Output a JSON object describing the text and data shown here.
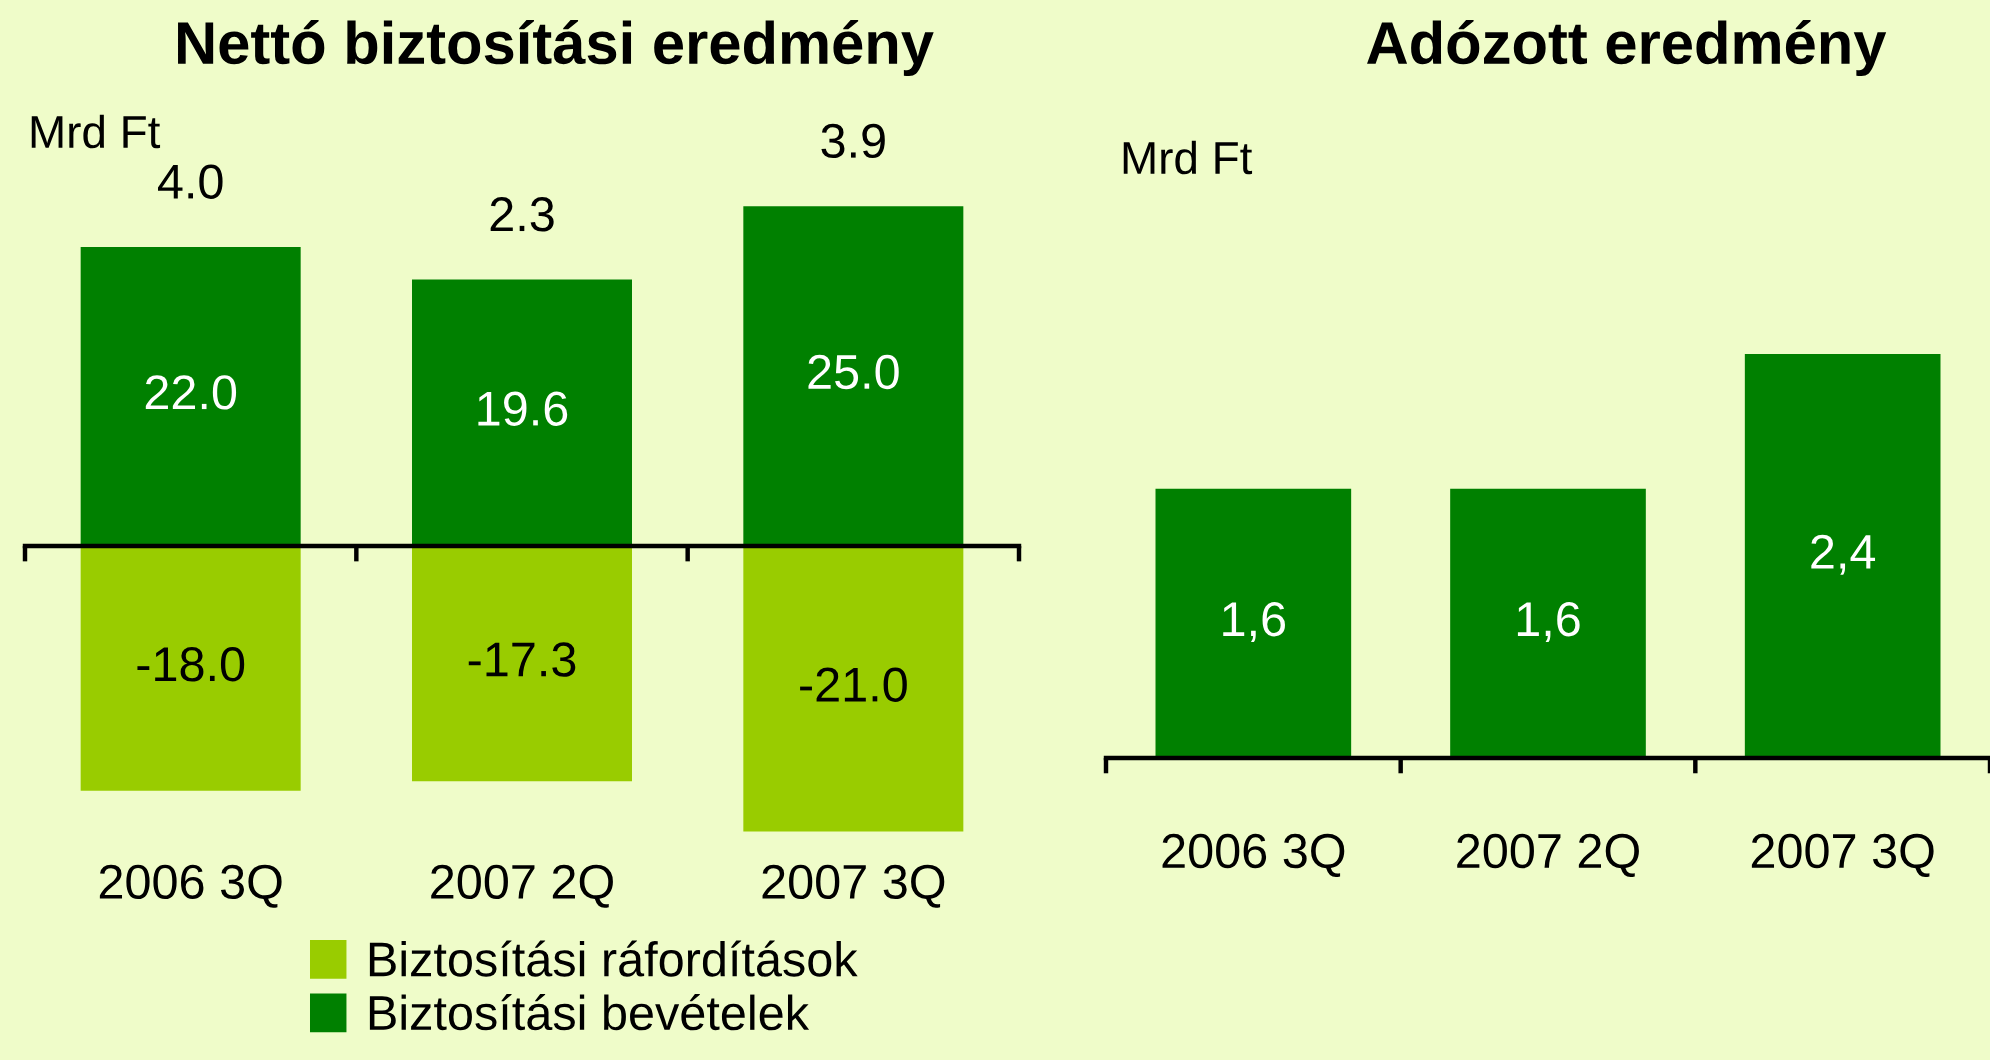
{
  "chart_data": [
    {
      "type": "bar",
      "title": "Nettó biztosítási eredmény",
      "ylabel": "Mrd Ft",
      "categories": [
        "2006 3Q",
        "2007 2Q",
        "2007 3Q"
      ],
      "stacked": true,
      "series": [
        {
          "name": "Biztosítási ráfordítások",
          "color": "#99cc00",
          "values": [
            -18.0,
            -17.3,
            -21.0
          ],
          "value_labels": [
            "-18.0",
            "-17.3",
            "-21.0"
          ]
        },
        {
          "name": "Biztosítási bevételek",
          "color": "#008000",
          "values": [
            22.0,
            19.6,
            25.0
          ],
          "value_labels": [
            "22.0",
            "19.6",
            "25.0"
          ]
        }
      ],
      "totals": [
        "4.0",
        "2.3",
        "3.9"
      ],
      "tick_labels": "x",
      "legend": "bottom"
    },
    {
      "type": "bar",
      "title": "Adózott eredmény",
      "ylabel": "Mrd Ft",
      "categories": [
        "2006 3Q",
        "2007 2Q",
        "2007 3Q"
      ],
      "values": [
        1.6,
        1.6,
        2.4
      ],
      "color": "#008000",
      "value_labels": [
        "1,6",
        "1,6",
        "2,4"
      ],
      "tick_labels": "x"
    }
  ]
}
